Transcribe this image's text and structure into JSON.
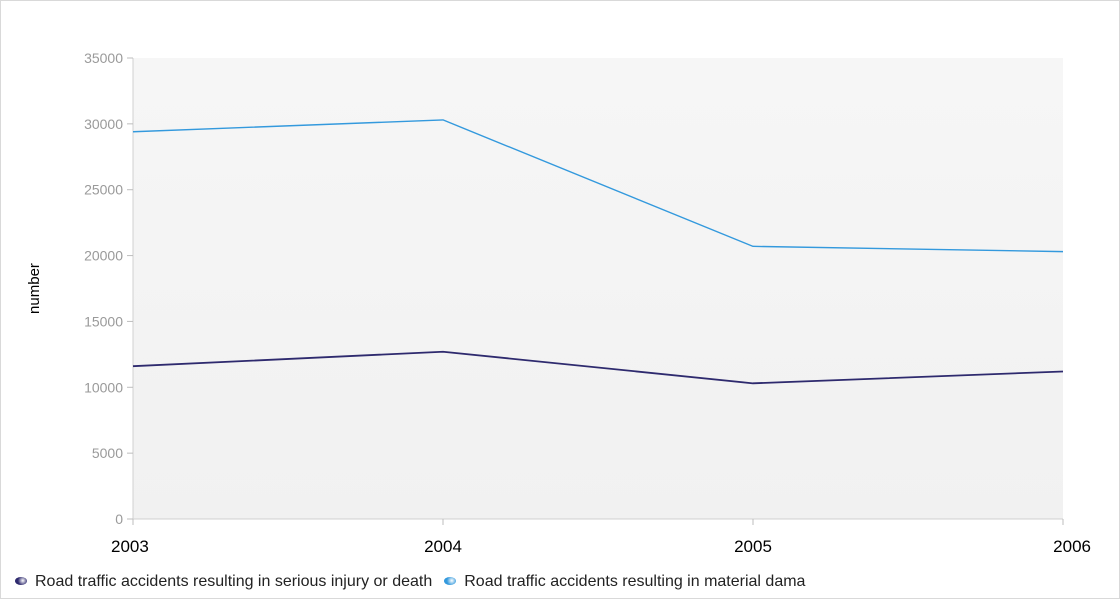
{
  "chart_data": {
    "type": "line",
    "title": "",
    "xlabel": "",
    "ylabel": "number",
    "categories": [
      "2003",
      "2004",
      "2005",
      "2006"
    ],
    "ylim": [
      0,
      35000
    ],
    "yticks": [
      0,
      5000,
      10000,
      15000,
      20000,
      25000,
      30000,
      35000
    ],
    "grid": false,
    "legend_position": "bottom",
    "series": [
      {
        "name": "Road traffic accidents resulting in serious injury or death",
        "values": [
          11600,
          12700,
          10300,
          11200
        ],
        "color": "#2e2a6e"
      },
      {
        "name": "Road traffic accidents resulting in material dama",
        "values": [
          29400,
          30300,
          20700,
          20300
        ],
        "color": "#3399dd"
      }
    ],
    "plot_background": "#f4f4f4"
  }
}
